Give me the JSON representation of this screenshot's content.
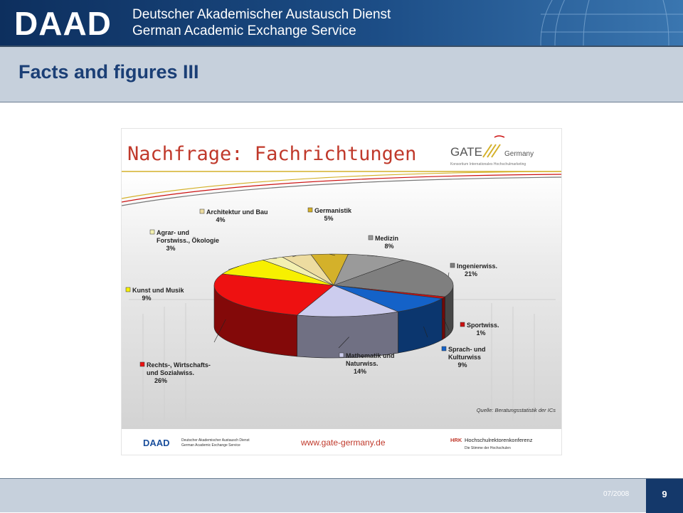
{
  "header": {
    "logo": "DAAD",
    "line1": "Deutscher Akademischer Austausch Dienst",
    "line2": "German Academic Exchange Service"
  },
  "page_title": "Facts and figures III",
  "slide": {
    "title": "Nachfrage: Fachrichtungen",
    "gate_logo_main": "GATE",
    "gate_logo_sub": "Germany",
    "gate_tagline": "Konsortium Internationales Hochschulmarketing",
    "source": "Quelle: Beratungsstatistik der ICs",
    "footer_daad": "DAAD",
    "footer_daad_line1": "Deutscher Akademischer Austausch Dienst",
    "footer_daad_line2": "German Academic Exchange Service",
    "footer_url": "www.gate-germany.de",
    "footer_hrk_abbr": "HRK",
    "footer_hrk_name": "Hochschulrektorenkonferenz",
    "footer_hrk_tagline": "Die Stimme der Hochschulen"
  },
  "footer": {
    "date": "07/2008",
    "page_number": "9"
  },
  "colors": {
    "header_navy": "#14386a",
    "title_blue": "#1b3f76",
    "band_gray": "#c6d0dc",
    "slide_title_red": "#c0392b"
  },
  "chart_data": {
    "type": "pie",
    "title": "Nachfrage: Fachrichtungen",
    "three_d": true,
    "slices": [
      {
        "label": "Germanistik",
        "value": 5,
        "value_label": "5%",
        "color": "#d4b12a"
      },
      {
        "label": "Medizin",
        "value": 8,
        "value_label": "8%",
        "color": "#9a9a9a"
      },
      {
        "label": "Ingenierwiss.",
        "value": 21,
        "value_label": "21%",
        "color": "#7f7f7f"
      },
      {
        "label": "Sportwiss.",
        "value": 1,
        "value_label": "1%",
        "color": "#cc1111"
      },
      {
        "label": "Sprach- und Kulturwiss",
        "value": 9,
        "value_label": "9%",
        "color": "#1462c8"
      },
      {
        "label": "Mathematik und Naturwiss.",
        "value": 14,
        "value_label": "14%",
        "color": "#ccccee"
      },
      {
        "label": "Rechts-, Wirtschafts- und Sozialwiss.",
        "value": 26,
        "value_label": "26%",
        "color": "#ee1111"
      },
      {
        "label": "Kunst und Musik",
        "value": 9,
        "value_label": "9%",
        "color": "#f7f000"
      },
      {
        "label": "Agrar- und Forstwiss., Ökologie",
        "value": 3,
        "value_label": "3%",
        "color": "#f3f0b0"
      },
      {
        "label": "Architektur und Bau",
        "value": 4,
        "value_label": "4%",
        "color": "#eddca0"
      }
    ]
  }
}
